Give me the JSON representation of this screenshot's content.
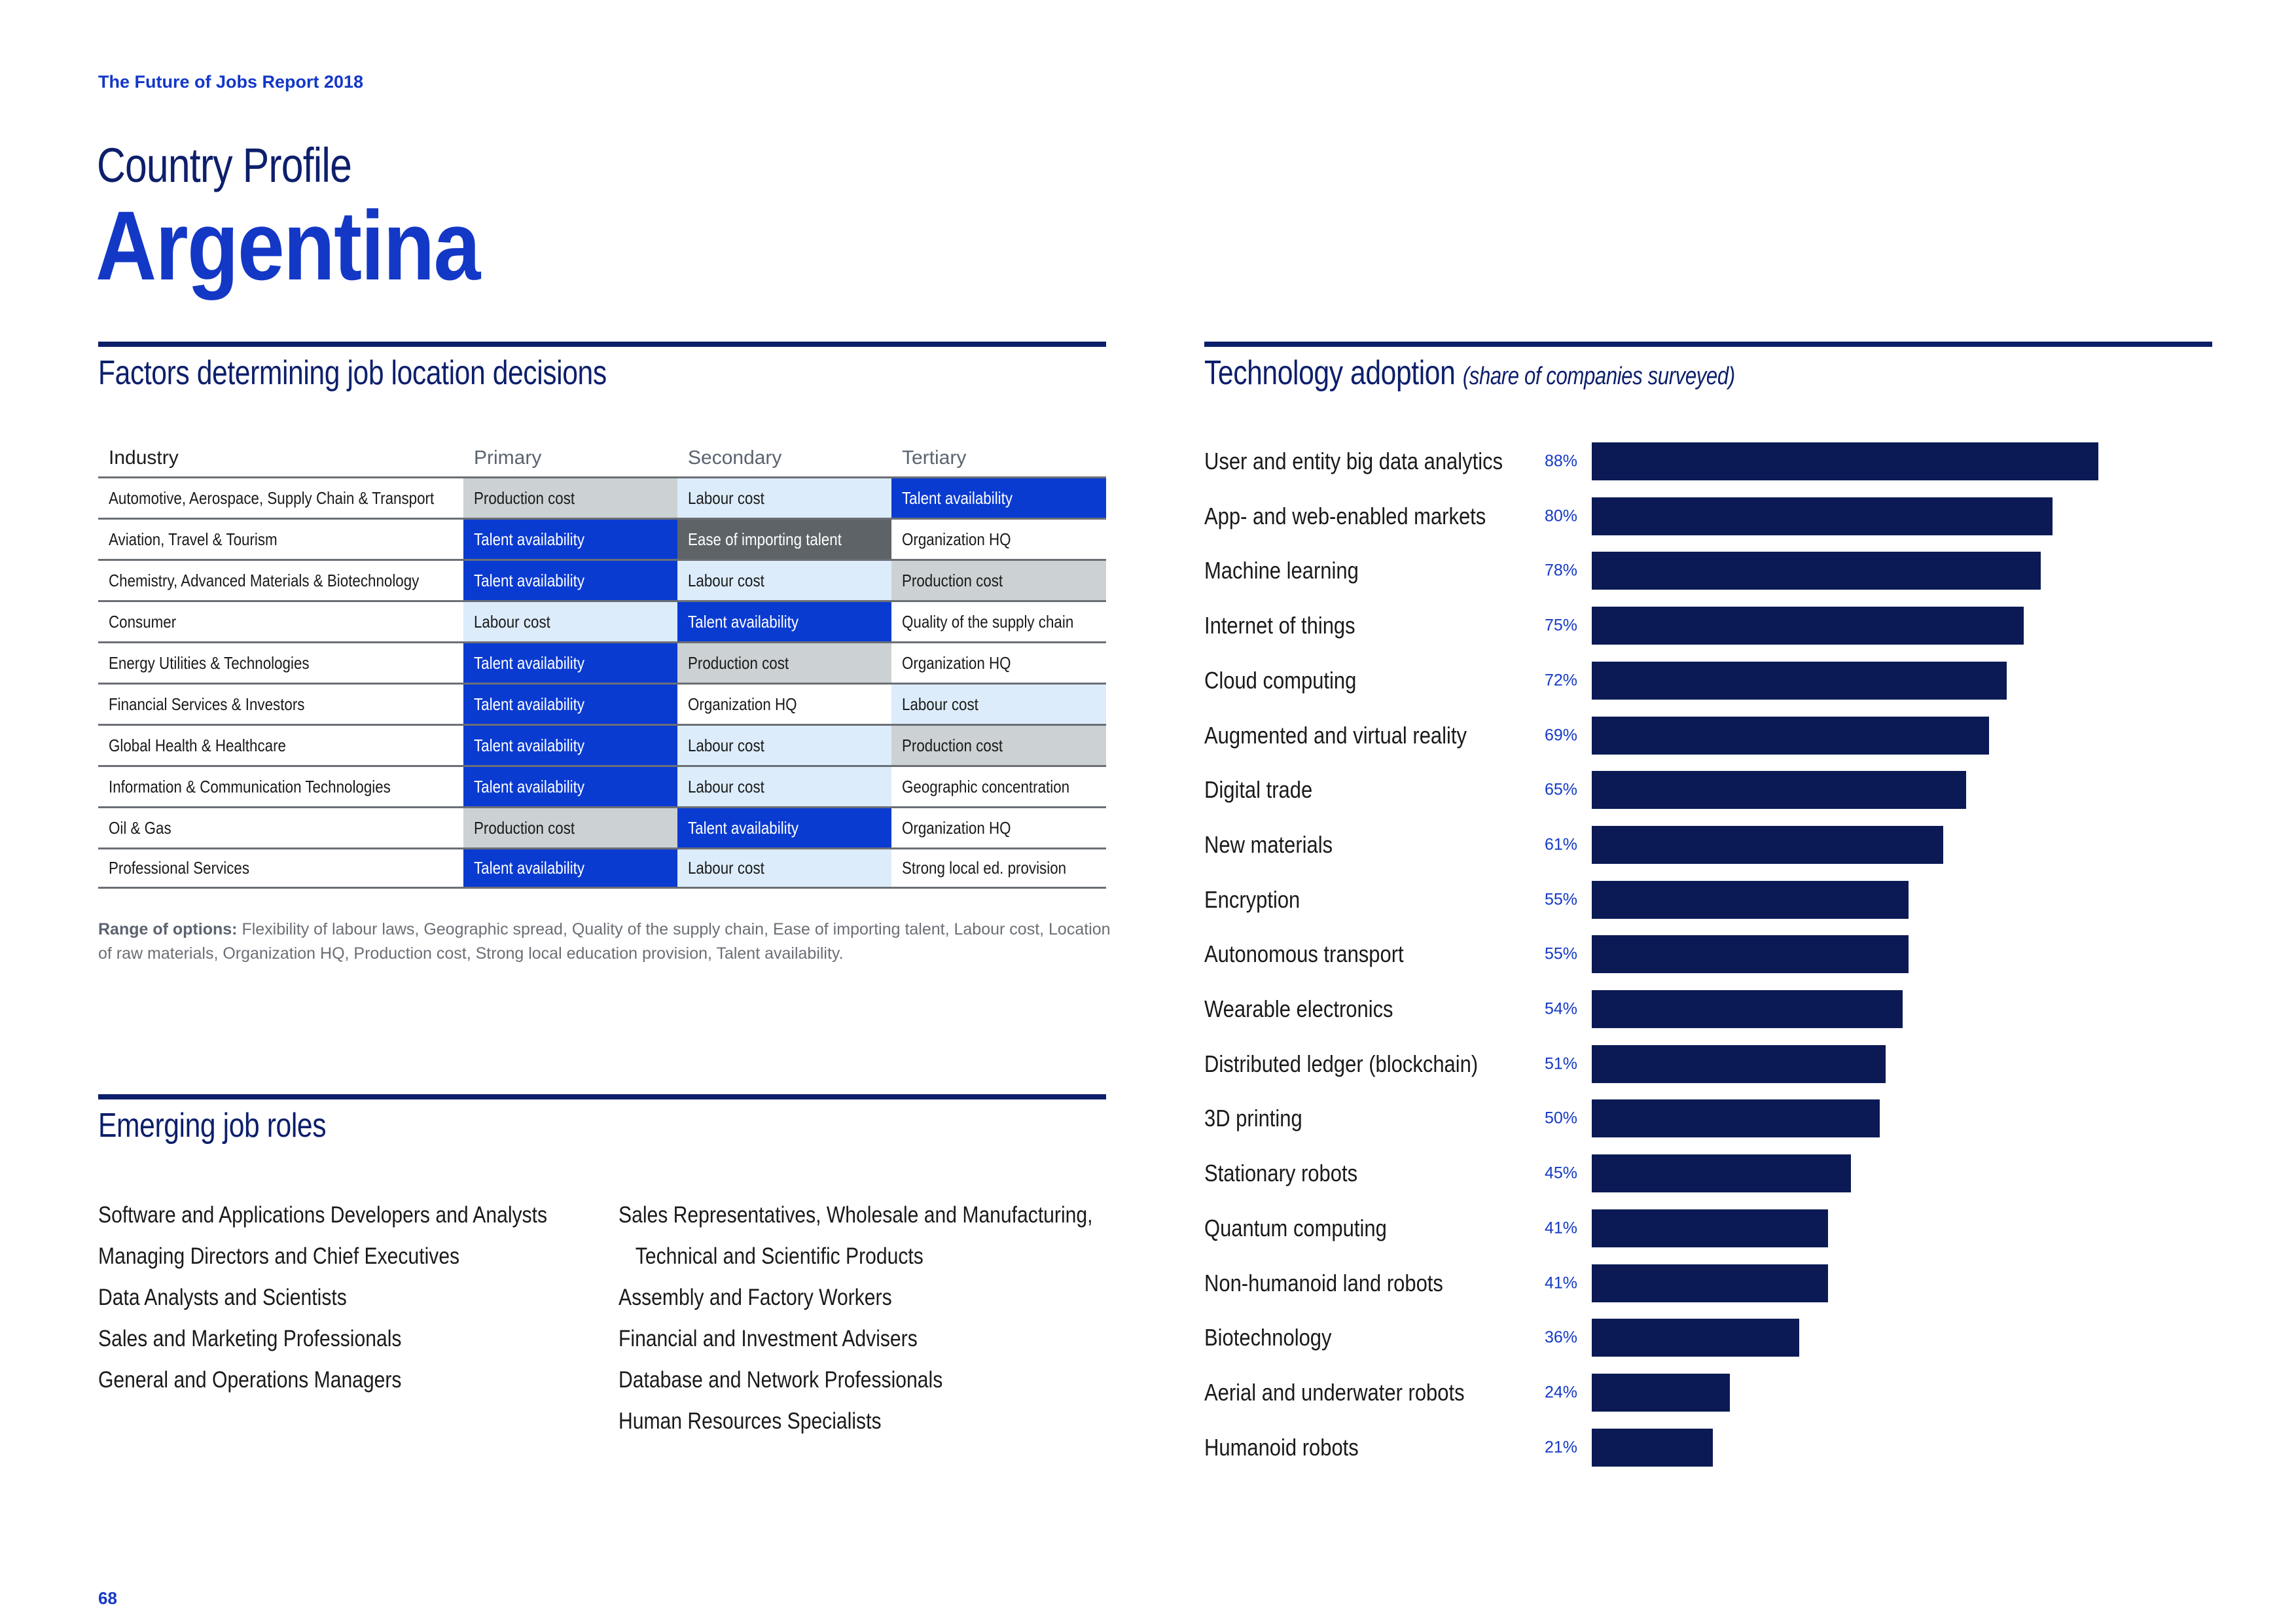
{
  "header": {
    "report_title": "The Future of Jobs Report 2018",
    "profile_label": "Country Profile",
    "country": "Argentina"
  },
  "factors": {
    "title": "Factors determining job location decisions",
    "columns": [
      "Industry",
      "Primary",
      "Secondary",
      "Tertiary"
    ],
    "rows": [
      {
        "industry": "Automotive, Aerospace, Supply Chain & Transport",
        "primary": "Production cost",
        "secondary": "Labour cost",
        "tertiary": "Talent availability"
      },
      {
        "industry": "Aviation, Travel & Tourism",
        "primary": "Talent availability",
        "secondary": "Ease of importing talent",
        "tertiary": "Organization HQ"
      },
      {
        "industry": "Chemistry, Advanced Materials & Biotechnology",
        "primary": "Talent availability",
        "secondary": "Labour cost",
        "tertiary": "Production cost"
      },
      {
        "industry": "Consumer",
        "primary": "Labour cost",
        "secondary": "Talent availability",
        "tertiary": "Quality of the supply chain"
      },
      {
        "industry": "Energy Utilities & Technologies",
        "primary": "Talent availability",
        "secondary": "Production cost",
        "tertiary": "Organization HQ"
      },
      {
        "industry": "Financial Services & Investors",
        "primary": "Talent availability",
        "secondary": "Organization HQ",
        "tertiary": "Labour cost"
      },
      {
        "industry": "Global Health & Healthcare",
        "primary": "Talent availability",
        "secondary": "Labour cost",
        "tertiary": "Production cost"
      },
      {
        "industry": "Information & Communication Technologies",
        "primary": "Talent availability",
        "secondary": "Labour cost",
        "tertiary": "Geographic concentration"
      },
      {
        "industry": "Oil & Gas",
        "primary": "Production cost",
        "secondary": "Talent availability",
        "tertiary": "Organization HQ"
      },
      {
        "industry": "Professional Services",
        "primary": "Talent availability",
        "secondary": "Labour cost",
        "tertiary": "Strong local ed. provision"
      }
    ],
    "range_label": "Range of options:",
    "range_text": "Flexibility of labour laws, Geographic spread, Quality of the supply chain, Ease of importing talent, Labour cost, Location of raw materials, Organization HQ, Production cost, Strong local education provision, Talent availability.",
    "colors": {
      "Talent availability": "#0a3bd1",
      "Production cost": "#ccd1d4",
      "Labour cost": "#dcecfb",
      "Ease of importing talent": "#5d6366",
      "Organization HQ": "#ffffff",
      "Quality of the supply chain": "#ffffff",
      "Geographic concentration": "#ffffff",
      "Strong local ed. provision": "#ffffff"
    }
  },
  "roles": {
    "title": "Emerging job roles",
    "col1": [
      "Software and Applications Developers and Analysts",
      "Managing Directors and Chief Executives",
      "Data Analysts and Scientists",
      "Sales and Marketing Professionals",
      "General and Operations Managers"
    ],
    "col2_first": "Sales Representatives, Wholesale and Manufacturing,",
    "col2_first_cont": "Technical and Scientific Products",
    "col2": [
      "Assembly and Factory Workers",
      "Financial and Investment Advisers",
      "Database and Network Professionals",
      "Human Resources Specialists"
    ]
  },
  "tech": {
    "title": "Technology adoption",
    "subtitle": "(share of companies surveyed)"
  },
  "chart_data": {
    "type": "bar",
    "orientation": "horizontal",
    "title": "Technology adoption (share of companies surveyed)",
    "categories": [
      "User and entity big data analytics",
      "App- and web-enabled markets",
      "Machine learning",
      "Internet of things",
      "Cloud computing",
      "Augmented and virtual reality",
      "Digital trade",
      "New materials",
      "Encryption",
      "Autonomous transport",
      "Wearable electronics",
      "Distributed ledger (blockchain)",
      "3D printing",
      "Stationary robots",
      "Quantum computing",
      "Non-humanoid land robots",
      "Biotechnology",
      "Aerial and underwater robots",
      "Humanoid robots"
    ],
    "values": [
      88,
      80,
      78,
      75,
      72,
      69,
      65,
      61,
      55,
      55,
      54,
      51,
      50,
      45,
      41,
      41,
      36,
      24,
      21
    ],
    "labels": [
      "88%",
      "80%",
      "78%",
      "75%",
      "72%",
      "69%",
      "65%",
      "61%",
      "55%",
      "55%",
      "54%",
      "51%",
      "50%",
      "45%",
      "41%",
      "41%",
      "36%",
      "24%",
      "21%"
    ],
    "xlim": [
      0,
      100
    ],
    "color": "#0b1a55"
  },
  "footer": {
    "page_number": "68"
  }
}
